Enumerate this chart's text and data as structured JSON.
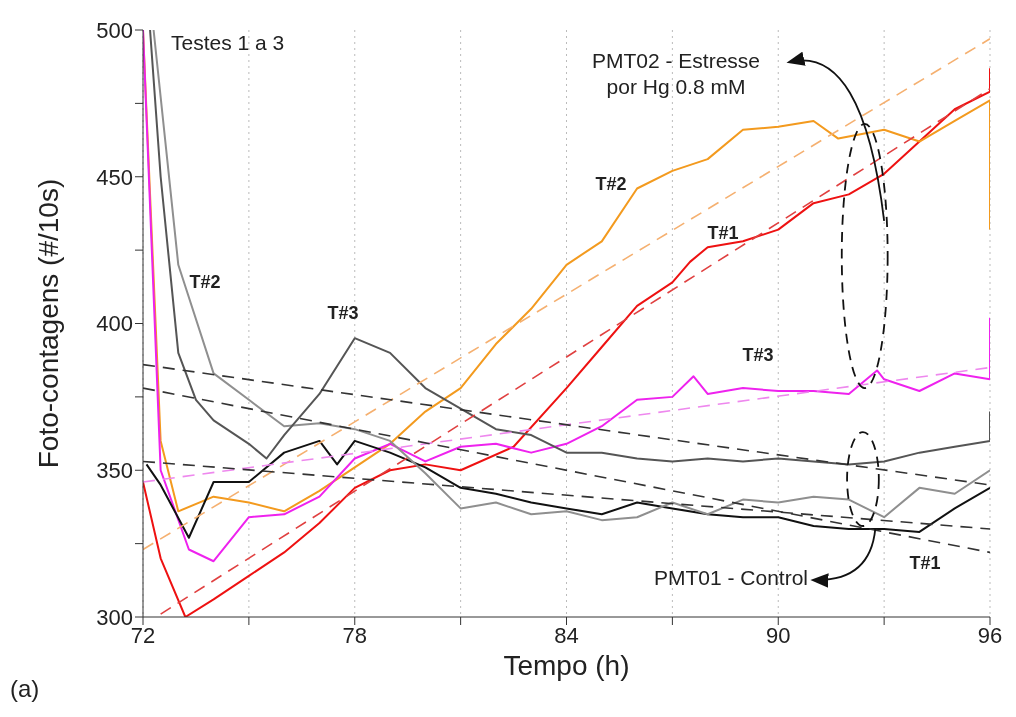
{
  "chart_data": {
    "type": "line",
    "xlabel": "Tempo (h)",
    "ylabel": "Foto-contagens (#/10s)",
    "xlim": [
      72,
      96
    ],
    "ylim": [
      300,
      500
    ],
    "xticks": [
      72,
      {
        "value": 75,
        "label": null
      },
      78,
      {
        "value": 81,
        "label": null
      },
      84,
      {
        "value": 87,
        "label": null
      },
      90,
      {
        "value": 93,
        "label": null
      },
      96
    ],
    "yticks": [
      300,
      {
        "value": 325,
        "label": null
      },
      350,
      {
        "value": 375,
        "label": null
      },
      400,
      {
        "value": 425,
        "label": null
      },
      450,
      {
        "value": 475,
        "label": null
      },
      500
    ],
    "grid": "x",
    "series": [
      {
        "color": "#ee1111",
        "x": [
          72,
          72.5,
          73.2,
          74,
          75,
          76,
          77,
          78,
          79,
          80,
          81,
          82.5,
          84,
          85,
          86,
          87,
          87.5,
          88,
          89,
          90,
          91,
          92,
          93,
          94,
          95,
          96,
          96
        ],
        "values": [
          346,
          320,
          300,
          306,
          314,
          322,
          332,
          344,
          350,
          352,
          350,
          358,
          378,
          392,
          406,
          414,
          421,
          426,
          428,
          432,
          441,
          444,
          451,
          462,
          473,
          479,
          487
        ]
      },
      {
        "color": "#f39a1e",
        "x": [
          72,
          72.5,
          73,
          74,
          75,
          76,
          77,
          78,
          79,
          80,
          81,
          82,
          83,
          84,
          85,
          86,
          87,
          88,
          89,
          90,
          91,
          91.7,
          93,
          94,
          95,
          96,
          96
        ],
        "values": [
          500,
          360,
          336,
          341,
          339,
          336,
          343,
          351,
          359,
          370,
          378,
          393,
          405,
          420,
          428,
          446,
          452,
          456,
          466,
          467,
          469,
          463,
          466,
          462,
          469,
          476,
          432
        ]
      },
      {
        "color": "#ee22ee",
        "x": [
          72,
          72.5,
          73.3,
          74,
          75,
          76,
          77,
          78,
          79,
          80,
          81,
          82,
          83,
          84,
          85,
          86,
          87,
          87.6,
          88,
          89,
          90,
          91,
          92,
          92.8,
          93,
          94,
          95,
          96,
          96
        ],
        "values": [
          500,
          350,
          323,
          319,
          334,
          335,
          341,
          354,
          359,
          353,
          358,
          359,
          356,
          359,
          365,
          374,
          375,
          382,
          376,
          378,
          377,
          377,
          376,
          384,
          381,
          377,
          383,
          381,
          402
        ]
      },
      {
        "color": "#111111",
        "x": [
          72.1,
          72.5,
          73.3,
          74,
          75,
          76,
          77,
          77.5,
          78,
          79,
          80,
          81,
          82,
          83,
          84,
          85,
          86,
          87,
          88,
          89,
          90,
          91,
          92,
          93,
          94,
          95,
          96
        ],
        "values": [
          352,
          345,
          327,
          346,
          346,
          356,
          360,
          352,
          360,
          356,
          351,
          344,
          342,
          339,
          337,
          335,
          339,
          337,
          335,
          334,
          334,
          331,
          330,
          330,
          329,
          337,
          344
        ]
      },
      {
        "color": "#8f8f8f",
        "x": [
          72.3,
          73,
          74,
          75,
          76,
          77,
          78,
          79,
          80,
          81,
          82,
          83,
          84,
          85,
          86,
          87,
          88,
          89,
          90,
          91,
          92,
          93,
          94,
          95,
          96
        ],
        "values": [
          500,
          420,
          383,
          374,
          365,
          366,
          364,
          360,
          349,
          337,
          339,
          335,
          336,
          333,
          334,
          339,
          335,
          340,
          339,
          341,
          340,
          334,
          344,
          342,
          350
        ]
      },
      {
        "color": "#555555",
        "x": [
          72.2,
          72.5,
          73,
          73.5,
          74,
          75,
          75.5,
          76,
          77,
          78,
          79,
          80,
          81,
          82,
          83,
          84,
          85,
          86,
          87,
          88,
          89,
          90,
          91,
          92,
          93,
          94,
          95,
          96,
          96
        ],
        "values": [
          500,
          450,
          390,
          374,
          367,
          359,
          354,
          362,
          376,
          395,
          390,
          378,
          371,
          364,
          362,
          356,
          356,
          354,
          353,
          354,
          353,
          354,
          353,
          352,
          353,
          356,
          358,
          360,
          370
        ]
      },
      {
        "color": "#f5b070",
        "line_style": "dashed",
        "x": [
          72,
          96
        ],
        "values": [
          323,
          497
        ]
      },
      {
        "color": "#e04040",
        "line_style": "dashed",
        "x": [
          72.5,
          96
        ],
        "values": [
          301,
          480
        ]
      },
      {
        "color": "#ee88ee",
        "line_style": "dashed",
        "x": [
          72,
          96
        ],
        "values": [
          346,
          385
        ]
      },
      {
        "color": "#333333",
        "line_style": "dashed",
        "x": [
          72,
          96
        ],
        "values": [
          386,
          345
        ]
      },
      {
        "color": "#333333",
        "line_style": "dashed",
        "x": [
          72,
          96
        ],
        "values": [
          378,
          322
        ]
      },
      {
        "color": "#333333",
        "line_style": "dashed",
        "x": [
          72,
          96
        ],
        "values": [
          353,
          330
        ]
      }
    ],
    "annotations": [
      "Testes 1 a 3",
      "PMT02 - Estresse por Hg 0.8 mM",
      "PMT01 - Control",
      "(a)",
      "T#2",
      "T#3",
      "T#2",
      "T#1",
      "T#3",
      "T#1"
    ]
  }
}
